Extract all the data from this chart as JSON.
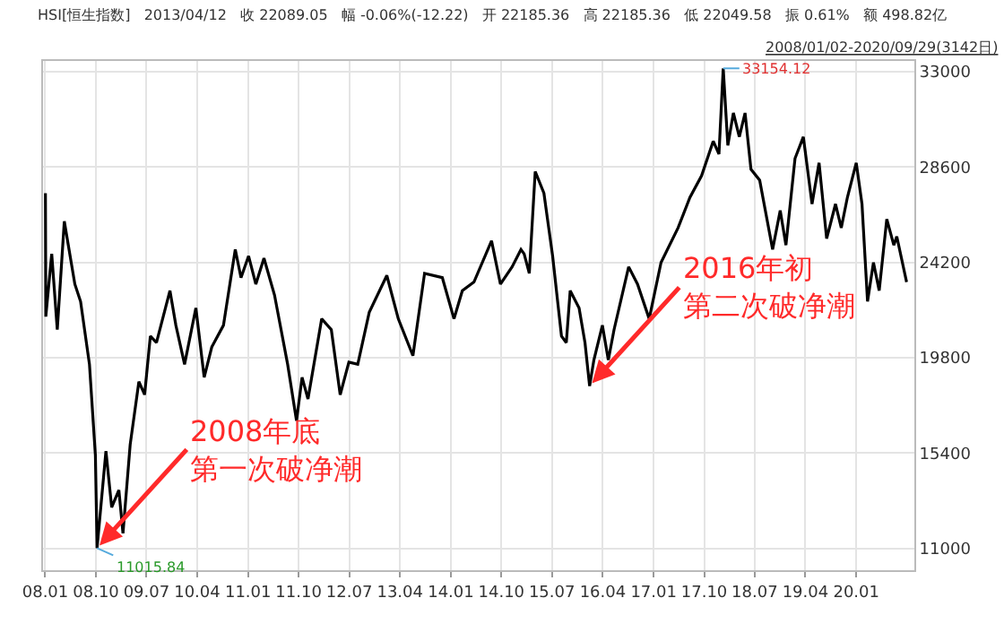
{
  "chart_data": {
    "type": "line",
    "title": "HSI[恒生指数]   2013/04/12   收 22089.05   幅 -0.06%(-12.22)   开 22185.36   高 22185.36   低 22049.58   振 0.61%   额 498.82亿",
    "subtitle": "2008/01/02-2020/09/29(3142日)",
    "x": [
      "2008-01-02",
      "2008-01-04",
      "2008-02-05",
      "2008-03-06",
      "2008-04-13",
      "2008-06-09",
      "2008-07-10",
      "2008-08-27",
      "2008-09-28",
      "2008-10-07",
      "2008-11-24",
      "2008-12-25",
      "2009-02-02",
      "2009-02-24",
      "2009-04-04",
      "2009-05-21",
      "2009-06-21",
      "2009-07-22",
      "2009-08-24",
      "2009-11-05",
      "2009-12-07",
      "2010-01-23",
      "2010-03-25",
      "2010-05-09",
      "2010-06-19",
      "2010-08-21",
      "2010-10-24",
      "2010-11-24",
      "2011-01-04",
      "2011-02-12",
      "2011-03-28",
      "2011-05-24",
      "2011-08-03",
      "2011-09-20",
      "2011-10-20",
      "2011-11-21",
      "2012-02-03",
      "2012-03-26",
      "2012-05-13",
      "2012-06-29",
      "2012-08-16",
      "2012-10-17",
      "2013-01-20",
      "2013-03-23",
      "2013-06-10",
      "2013-08-12",
      "2013-11-16",
      "2014-01-18",
      "2014-03-04",
      "2014-05-06",
      "2014-08-09",
      "2014-09-26",
      "2014-11-28",
      "2015-01-15",
      "2015-02-01",
      "2015-03-01",
      "2015-04-02",
      "2015-05-19",
      "2015-07-05",
      "2015-08-22",
      "2015-09-17",
      "2015-10-08",
      "2015-11-25",
      "2015-12-27",
      "2016-01-21",
      "2016-02-13",
      "2016-03-30",
      "2016-05-01",
      "2016-06-01",
      "2016-08-19",
      "2016-10-06",
      "2016-12-08",
      "2017-02-10",
      "2017-05-13",
      "2017-07-16",
      "2017-09-17",
      "2017-11-19",
      "2017-12-20",
      "2018-01-12",
      "2018-02-06",
      "2018-03-08",
      "2018-04-09",
      "2018-05-10",
      "2018-06-11",
      "2018-07-28",
      "2018-10-06",
      "2018-11-16",
      "2018-12-17",
      "2019-02-04",
      "2019-03-21",
      "2019-05-07",
      "2019-06-14",
      "2019-07-25",
      "2019-09-11",
      "2019-10-12",
      "2019-11-14",
      "2020-01-01",
      "2020-02-01",
      "2020-03-02",
      "2020-04-03",
      "2020-05-04",
      "2020-06-14",
      "2020-07-22",
      "2020-08-07",
      "2020-09-29"
    ],
    "series": [
      {
        "color": "#000000",
        "values": [
          27400,
          21700,
          24600,
          21100,
          26100,
          23200,
          22400,
          19500,
          15300,
          11015.84,
          15500,
          12900,
          13700,
          11700,
          15800,
          18700,
          18100,
          20800,
          20500,
          22900,
          21300,
          19500,
          22100,
          18900,
          20300,
          21300,
          24800,
          23500,
          24500,
          23200,
          24400,
          22700,
          19500,
          16900,
          18900,
          17900,
          21600,
          21100,
          18100,
          19600,
          19500,
          21900,
          23600,
          21600,
          19900,
          23700,
          23500,
          21600,
          22900,
          23300,
          25200,
          23200,
          24000,
          24800,
          24600,
          23700,
          28400,
          27400,
          24500,
          20800,
          20500,
          22900,
          22100,
          20500,
          18500,
          19700,
          21300,
          19700,
          21100,
          24000,
          23200,
          21600,
          24200,
          25800,
          27200,
          28200,
          29800,
          29200,
          33154.12,
          29600,
          31100,
          30000,
          31100,
          28500,
          28000,
          24800,
          26600,
          25000,
          29000,
          30000,
          26900,
          28800,
          25300,
          26900,
          25800,
          27200,
          28800,
          26900,
          22400,
          24200,
          22900,
          26200,
          25000,
          25400,
          23300
        ]
      }
    ],
    "annotations": [
      {
        "text": "33154.12",
        "x": "2018-01-12",
        "y": 33154.12
      },
      {
        "text": "11015.84",
        "x": "2008-10-07",
        "y": 11015.84
      },
      {
        "text": "2008年底第一次破净潮",
        "x": "2008-10-07",
        "y": 11015.84
      },
      {
        "text": "2016年初第二次破净潮",
        "x": "2016-01-21",
        "y": 18500
      }
    ],
    "xlim": [
      "2007-12-20",
      "2020-11-10"
    ],
    "xticks": [
      {
        "value": "2008-01-01",
        "label": "08.01"
      },
      {
        "value": "2008-10-01",
        "label": "08.10"
      },
      {
        "value": "2009-07-01",
        "label": "09.07"
      },
      {
        "value": "2010-04-01",
        "label": "10.04"
      },
      {
        "value": "2011-01-01",
        "label": "11.01"
      },
      {
        "value": "2011-10-01",
        "label": "11.10"
      },
      {
        "value": "2012-07-01",
        "label": "12.07"
      },
      {
        "value": "2013-04-01",
        "label": "13.04"
      },
      {
        "value": "2014-01-01",
        "label": "14.01"
      },
      {
        "value": "2014-10-01",
        "label": "14.10"
      },
      {
        "value": "2015-07-01",
        "label": "15.07"
      },
      {
        "value": "2016-04-01",
        "label": "16.04"
      },
      {
        "value": "2017-01-01",
        "label": "17.01"
      },
      {
        "value": "2017-10-01",
        "label": "17.10"
      },
      {
        "value": "2018-07-01",
        "label": "18.07"
      },
      {
        "value": "2019-04-01",
        "label": "19.04"
      },
      {
        "value": "2020-01-01",
        "label": "20.01"
      }
    ],
    "ylim": [
      10000,
      33500
    ],
    "yticks": [
      11000,
      15400,
      19800,
      24200,
      28600,
      33000
    ],
    "grid": true,
    "marker": "none",
    "line_style": "solid"
  }
}
